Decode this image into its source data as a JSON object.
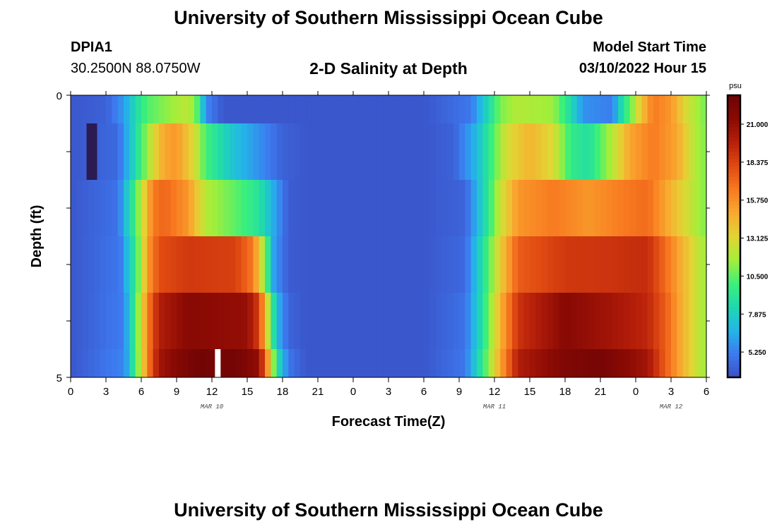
{
  "page": {
    "title_top": "University of Southern Mississippi Ocean Cube",
    "title_bottom": "University of Southern Mississippi Ocean Cube",
    "station_id": "DPIA1",
    "station_coords": "30.2500N  88.0750W",
    "plot_title": "2-D Salinity at Depth",
    "model_start_label": "Model Start Time",
    "model_start_value": "03/10/2022 Hour 15"
  },
  "chart_data": {
    "type": "heatmap",
    "title": "2-D Salinity at Depth",
    "xlabel": "Forecast Time(Z)",
    "ylabel": "Depth (ft)",
    "x_range_hours": [
      0,
      54
    ],
    "y_range_ft": [
      0,
      5
    ],
    "y_tick_labels": [
      "0",
      "5"
    ],
    "x_tick_labels": [
      "0",
      "3",
      "6",
      "9",
      "12",
      "15",
      "18",
      "21",
      "0",
      "3",
      "6",
      "9",
      "12",
      "15",
      "18",
      "21",
      "0",
      "3",
      "6"
    ],
    "date_labels": [
      {
        "label": "MAR 10",
        "hour": 12
      },
      {
        "label": "MAR 11",
        "hour": 36
      },
      {
        "label": "MAR 12",
        "hour": 51
      }
    ],
    "colorbar": {
      "units": "psu",
      "min": 3.5,
      "max": 23.0,
      "ticks": [
        "21.000",
        "18.375",
        "15.750",
        "13.125",
        "10.500",
        "7.875",
        "5.250"
      ],
      "tick_values": [
        21.0,
        18.375,
        15.75,
        13.125,
        10.5,
        7.875,
        5.25
      ],
      "colors": [
        "#3b4fc4",
        "#3d7af0",
        "#24b5e8",
        "#1ed8b0",
        "#3cf07a",
        "#a4ee3a",
        "#e2d534",
        "#f8aa30",
        "#f87a20",
        "#e04a12",
        "#b8200a",
        "#8a0a04",
        "#6e0404"
      ]
    },
    "depth_rows_ft": [
      0,
      1,
      2,
      3,
      4,
      5
    ],
    "profiles": [
      {
        "depth_band": "0-0.5",
        "points": [
          [
            0,
            3.8
          ],
          [
            3,
            4.2
          ],
          [
            4.5,
            6
          ],
          [
            5.5,
            8.5
          ],
          [
            6.5,
            10.3
          ],
          [
            8,
            11.2
          ],
          [
            10,
            12.3
          ],
          [
            10.8,
            10.2
          ],
          [
            11.5,
            5.5
          ],
          [
            13,
            3.8
          ],
          [
            30,
            3.8
          ],
          [
            34,
            5
          ],
          [
            35.5,
            8.5
          ],
          [
            36.5,
            11
          ],
          [
            38,
            12
          ],
          [
            41,
            11.5
          ],
          [
            42.5,
            8.5
          ],
          [
            43.5,
            5.8
          ],
          [
            46,
            5.2
          ],
          [
            46.8,
            8.5
          ],
          [
            47.8,
            11.5
          ],
          [
            48.5,
            14
          ],
          [
            49.5,
            16.5
          ],
          [
            51,
            15.5
          ],
          [
            52.5,
            12.5
          ],
          [
            54,
            10.8
          ]
        ]
      },
      {
        "depth_band": "0.5-1.5",
        "points": [
          [
            0,
            3.8
          ],
          [
            4,
            4.5
          ],
          [
            5.5,
            8.5
          ],
          [
            6.5,
            11.5
          ],
          [
            7.2,
            13.5
          ],
          [
            8,
            15
          ],
          [
            9,
            15.5
          ],
          [
            10.5,
            13
          ],
          [
            11.5,
            10
          ],
          [
            14,
            7.2
          ],
          [
            17,
            5
          ],
          [
            18,
            4.2
          ],
          [
            20,
            3.8
          ],
          [
            30,
            3.8
          ],
          [
            32.5,
            4.2
          ],
          [
            34.5,
            7
          ],
          [
            36,
            10.5
          ],
          [
            37,
            12.8
          ],
          [
            39,
            14.5
          ],
          [
            41,
            13
          ],
          [
            42.5,
            9.5
          ],
          [
            44,
            8.8
          ],
          [
            46,
            12
          ],
          [
            47.5,
            15
          ],
          [
            49.5,
            16.5
          ],
          [
            51.5,
            15
          ],
          [
            53,
            12
          ],
          [
            54,
            11
          ]
        ]
      },
      {
        "depth_band": "1.5-2.5",
        "points": [
          [
            0,
            3.8
          ],
          [
            4,
            4.8
          ],
          [
            5.2,
            9
          ],
          [
            6.3,
            13.5
          ],
          [
            7,
            16.5
          ],
          [
            8,
            17.2
          ],
          [
            10,
            15.5
          ],
          [
            11.5,
            12
          ],
          [
            14,
            10.5
          ],
          [
            16,
            9
          ],
          [
            17.5,
            6
          ],
          [
            18.5,
            4
          ],
          [
            20,
            3.8
          ],
          [
            30,
            3.8
          ],
          [
            33.5,
            4.3
          ],
          [
            35,
            8
          ],
          [
            36.5,
            12.5
          ],
          [
            38,
            15.5
          ],
          [
            41,
            16.5
          ],
          [
            44,
            15.5
          ],
          [
            47,
            16.5
          ],
          [
            49,
            17
          ],
          [
            51,
            14.5
          ],
          [
            53,
            12
          ],
          [
            54,
            11
          ]
        ]
      },
      {
        "depth_band": "2.5-3.5",
        "points": [
          [
            0,
            3.8
          ],
          [
            4.2,
            5
          ],
          [
            5.5,
            9.5
          ],
          [
            6.6,
            15.5
          ],
          [
            7.5,
            18
          ],
          [
            10,
            18.8
          ],
          [
            14,
            18.5
          ],
          [
            15.5,
            16.5
          ],
          [
            16.5,
            11
          ],
          [
            17.3,
            6
          ],
          [
            18.5,
            4
          ],
          [
            20,
            3.8
          ],
          [
            30,
            3.8
          ],
          [
            33.5,
            4.5
          ],
          [
            35,
            8.8
          ],
          [
            36.5,
            13.5
          ],
          [
            38,
            17.5
          ],
          [
            42,
            18.8
          ],
          [
            46,
            19
          ],
          [
            49,
            19.3
          ],
          [
            50.5,
            17
          ],
          [
            52,
            14.5
          ],
          [
            53.5,
            12
          ],
          [
            54,
            11.5
          ]
        ]
      },
      {
        "depth_band": "3.5-4.5",
        "points": [
          [
            0,
            3.8
          ],
          [
            4.5,
            5.2
          ],
          [
            5.5,
            10
          ],
          [
            6.6,
            16.5
          ],
          [
            7.5,
            20
          ],
          [
            10,
            21.5
          ],
          [
            15,
            21
          ],
          [
            16,
            18.5
          ],
          [
            16.8,
            12
          ],
          [
            17.5,
            7
          ],
          [
            18.5,
            4.3
          ],
          [
            20,
            3.8
          ],
          [
            30,
            3.8
          ],
          [
            33.5,
            4.8
          ],
          [
            35,
            9
          ],
          [
            36.5,
            14.5
          ],
          [
            38,
            19
          ],
          [
            42,
            21.5
          ],
          [
            46,
            20.5
          ],
          [
            49,
            19.5
          ],
          [
            50.5,
            17.5
          ],
          [
            52,
            14.5
          ],
          [
            53.5,
            12
          ],
          [
            54,
            11.5
          ]
        ]
      },
      {
        "depth_band": "4.5-5",
        "points": [
          [
            0,
            3.8
          ],
          [
            4.6,
            5.5
          ],
          [
            5.6,
            10.5
          ],
          [
            6.7,
            17
          ],
          [
            7.5,
            20.5
          ],
          [
            9.5,
            22
          ],
          [
            11,
            22.8
          ],
          [
            12.5,
            22.5
          ],
          [
            14,
            22.7
          ],
          [
            16,
            21
          ],
          [
            16.8,
            15
          ],
          [
            17.5,
            9
          ],
          [
            18.5,
            5
          ],
          [
            20,
            3.8
          ],
          [
            30,
            3.8
          ],
          [
            33.5,
            5
          ],
          [
            35,
            9.5
          ],
          [
            36.5,
            15
          ],
          [
            38,
            20
          ],
          [
            42,
            22
          ],
          [
            45,
            22.5
          ],
          [
            47,
            21.5
          ],
          [
            49,
            20.5
          ],
          [
            50.5,
            17.5
          ],
          [
            52,
            14.5
          ],
          [
            53.5,
            12
          ],
          [
            54,
            11.5
          ]
        ]
      }
    ],
    "annotations": [
      {
        "type": "no-data-marker",
        "hour": 12.5,
        "depth_band": "4.5-5",
        "color": "#ffffff"
      },
      {
        "type": "low-value-marker",
        "hour": 1.8,
        "depth_band": "0.5-1.5",
        "color": "#2c1a52"
      }
    ]
  }
}
